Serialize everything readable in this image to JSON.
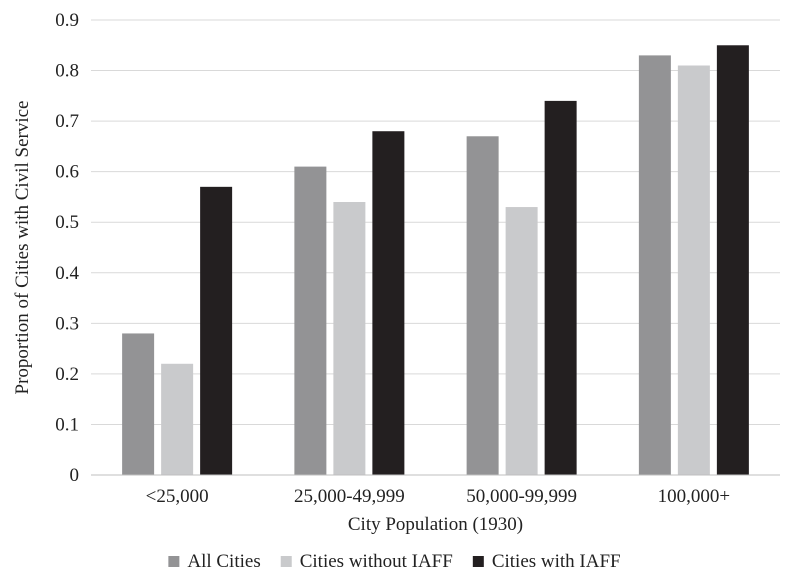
{
  "chart_data": {
    "type": "bar",
    "title": "",
    "xlabel": "City Population (1930)",
    "ylabel": "Proportion of Cities with Civil Service",
    "categories": [
      "<25,000",
      "25,000-49,999",
      "50,000-99,999",
      "100,000+"
    ],
    "ylim": [
      0,
      0.9
    ],
    "yticks": [
      "0",
      "0.1",
      "0.2",
      "0.3",
      "0.4",
      "0.5",
      "0.6",
      "0.7",
      "0.8",
      "0.9"
    ],
    "grid": true,
    "legend_position": "bottom",
    "series": [
      {
        "name": "All Cities",
        "color": "#939395",
        "values": [
          0.28,
          0.61,
          0.67,
          0.83
        ]
      },
      {
        "name": "Cities without IAFF",
        "color": "#c9cacc",
        "values": [
          0.22,
          0.54,
          0.53,
          0.81
        ]
      },
      {
        "name": "Cities with IAFF",
        "color": "#231f20",
        "values": [
          0.57,
          0.68,
          0.74,
          0.85
        ]
      }
    ]
  }
}
